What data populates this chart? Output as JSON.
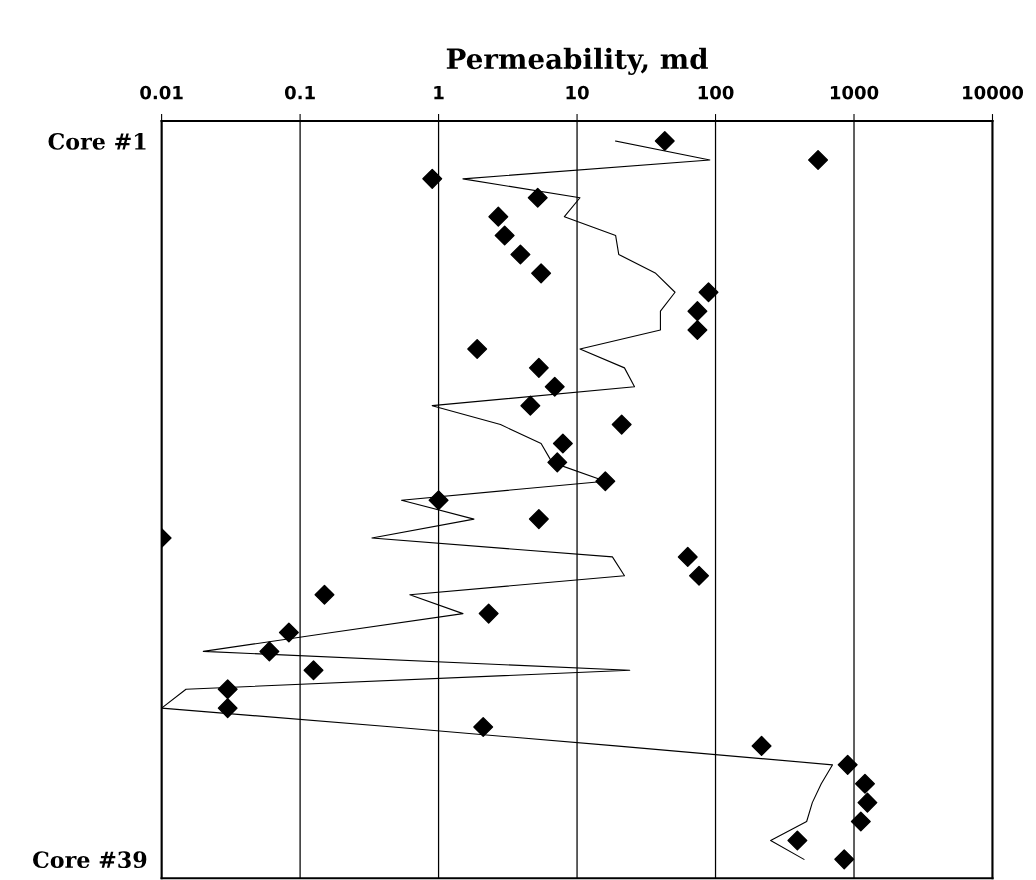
{
  "chart_data": {
    "type": "scatter",
    "orientation": "horizontal",
    "xlabel": "Permeability, md",
    "categories": [
      "Core #1",
      null,
      null,
      null,
      null,
      null,
      null,
      null,
      null,
      null,
      null,
      null,
      null,
      null,
      null,
      null,
      null,
      null,
      null,
      null,
      null,
      null,
      null,
      null,
      null,
      null,
      null,
      null,
      null,
      null,
      null,
      null,
      null,
      null,
      null,
      null,
      null,
      null,
      "Core #39"
    ],
    "series": [
      {
        "color": "#000000",
        "marker": "diamond",
        "values": [
          43,
          550,
          0.9,
          5.2,
          2.7,
          3.0,
          3.9,
          5.5,
          89,
          74,
          74,
          1.9,
          5.3,
          6.9,
          4.6,
          21,
          7.9,
          7.2,
          16,
          1.0,
          5.3,
          0.01,
          63,
          76,
          0.15,
          2.3,
          0.083,
          0.06,
          0.125,
          0.03,
          0.03,
          2.1,
          215,
          900,
          1200,
          1250,
          1120,
          390,
          850
        ]
      },
      {
        "type": "line",
        "color": "#000000",
        "marker": "none",
        "line_style": "solid",
        "values": [
          19,
          91,
          1.5,
          10.5,
          8.1,
          19,
          20,
          37,
          51,
          40,
          40,
          10.5,
          22,
          26,
          0.9,
          2.8,
          5.5,
          6.6,
          16,
          0.54,
          1.8,
          0.33,
          18,
          22,
          0.62,
          1.5,
          0.17,
          0.02,
          24,
          0.015,
          0.01,
          0.47,
          19,
          700,
          580,
          500,
          455,
          250,
          435
        ]
      }
    ],
    "log": "x",
    "xlim": [
      0.01,
      10000
    ],
    "xticks": [
      0.01,
      0.1,
      1,
      10,
      100,
      1000,
      10000
    ],
    "grid": "x",
    "legend": false
  }
}
